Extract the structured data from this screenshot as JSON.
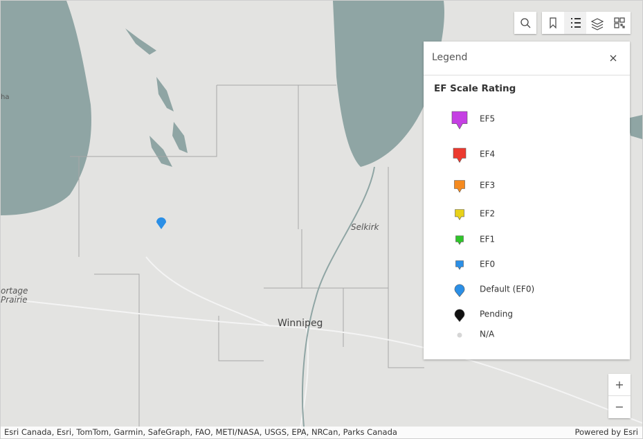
{
  "legend": {
    "title": "Legend",
    "layer_title": "EF Scale Rating",
    "items": [
      {
        "label": "EF5",
        "color": "#c53fe3"
      },
      {
        "label": "EF4",
        "color": "#ec3a2f"
      },
      {
        "label": "EF3",
        "color": "#f58a1f"
      },
      {
        "label": "EF2",
        "color": "#e8d21a"
      },
      {
        "label": "EF1",
        "color": "#2fc52a"
      },
      {
        "label": "EF0",
        "color": "#2b8fe6"
      },
      {
        "label": "Default (EF0)",
        "color": "#2b8fe6"
      },
      {
        "label": "Pending",
        "color": "#111111"
      },
      {
        "label": "N/A",
        "color": "#d6d6d6"
      }
    ]
  },
  "map": {
    "places": [
      "Winnipeg",
      "Selkirk",
      "ortage",
      "Prairie",
      "ha"
    ]
  },
  "zoom": {
    "in": "+",
    "out": "−"
  },
  "attribution": {
    "sources": "Esri Canada, Esri, TomTom, Garmin, SafeGraph, FAO, METI/NASA, USGS, EPA, NRCan, Parks Canada",
    "powered_by": "Powered by Esri"
  }
}
